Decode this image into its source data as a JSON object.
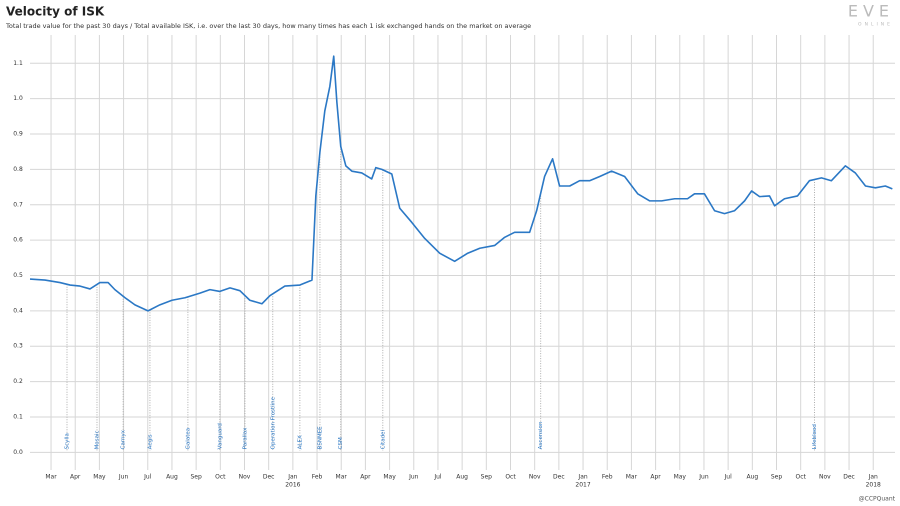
{
  "chart_data": {
    "type": "line",
    "title": "Velocity of ISK",
    "subtitle": "Total trade value for the past 30 days / Total available ISK, i.e. over the last 30 days, how many times has each 1 isk exchanged hands on the market on average",
    "logo": "EVE",
    "logo_sub": "ONLINE",
    "credit": "@CCPQuant",
    "x": [
      0.13,
      0.75,
      1.37,
      1.79,
      2.2,
      2.61,
      3.02,
      3.36,
      3.64,
      4.06,
      4.47,
      5.01,
      5.5,
      6.0,
      6.54,
      7.16,
      7.57,
      7.98,
      8.4,
      8.81,
      9.22,
      9.72,
      10.05,
      10.67,
      11.29,
      11.79,
      11.95,
      12.12,
      12.32,
      12.53,
      12.69,
      12.82,
      12.98,
      13.19,
      13.44,
      13.85,
      14.26,
      14.43,
      14.68,
      15.09,
      15.42,
      15.92,
      16.45,
      17.07,
      17.69,
      18.23,
      18.73,
      19.35,
      19.76,
      20.17,
      20.79,
      21.08,
      21.41,
      21.74,
      22.03,
      22.45,
      22.86,
      23.27,
      23.69,
      24.18,
      24.72,
      25.26,
      25.75,
      26.25,
      26.79,
      27.32,
      27.61,
      28.02,
      28.44,
      28.85,
      29.26,
      29.68,
      29.97,
      30.3,
      30.71,
      30.92,
      31.33,
      31.87,
      32.36,
      32.86,
      33.27,
      33.85,
      34.26,
      34.68,
      35.09,
      35.5,
      35.79
    ],
    "series": [
      {
        "name": "Velocity of ISK",
        "color": "#2b78c5",
        "values": [
          0.49,
          0.487,
          0.48,
          0.473,
          0.47,
          0.462,
          0.48,
          0.48,
          0.46,
          0.437,
          0.417,
          0.4,
          0.417,
          0.43,
          0.437,
          0.45,
          0.46,
          0.455,
          0.465,
          0.457,
          0.43,
          0.42,
          0.443,
          0.47,
          0.473,
          0.487,
          0.725,
          0.85,
          0.965,
          1.035,
          1.12,
          0.99,
          0.865,
          0.81,
          0.795,
          0.79,
          0.773,
          0.805,
          0.8,
          0.787,
          0.69,
          0.65,
          0.605,
          0.563,
          0.54,
          0.563,
          0.577,
          0.585,
          0.608,
          0.622,
          0.622,
          0.683,
          0.78,
          0.83,
          0.753,
          0.753,
          0.768,
          0.768,
          0.78,
          0.795,
          0.78,
          0.731,
          0.711,
          0.711,
          0.717,
          0.717,
          0.731,
          0.731,
          0.683,
          0.675,
          0.683,
          0.711,
          0.739,
          0.723,
          0.725,
          0.697,
          0.717,
          0.725,
          0.768,
          0.776,
          0.768,
          0.81,
          0.79,
          0.753,
          0.748,
          0.753,
          0.745
        ]
      }
    ],
    "xlim": [
      0.13,
      35.9
    ],
    "xticks": [
      {
        "value": 1,
        "label": "Mar"
      },
      {
        "value": 2,
        "label": "Apr"
      },
      {
        "value": 3,
        "label": "May"
      },
      {
        "value": 4,
        "label": "Jun"
      },
      {
        "value": 5,
        "label": "Jul"
      },
      {
        "value": 6,
        "label": "Aug"
      },
      {
        "value": 7,
        "label": "Sep"
      },
      {
        "value": 8,
        "label": "Oct"
      },
      {
        "value": 9,
        "label": "Nov"
      },
      {
        "value": 10,
        "label": "Dec"
      },
      {
        "value": 11,
        "label": "Jan"
      },
      {
        "value": 12,
        "label": "Feb"
      },
      {
        "value": 13,
        "label": "Mar"
      },
      {
        "value": 14,
        "label": "Apr"
      },
      {
        "value": 15,
        "label": "May"
      },
      {
        "value": 16,
        "label": "Jun"
      },
      {
        "value": 17,
        "label": "Jul"
      },
      {
        "value": 18,
        "label": "Aug"
      },
      {
        "value": 19,
        "label": "Sep"
      },
      {
        "value": 20,
        "label": "Oct"
      },
      {
        "value": 21,
        "label": "Nov"
      },
      {
        "value": 22,
        "label": "Dec"
      },
      {
        "value": 23,
        "label": "Jan"
      },
      {
        "value": 24,
        "label": "Feb"
      },
      {
        "value": 25,
        "label": "Mar"
      },
      {
        "value": 26,
        "label": "Apr"
      },
      {
        "value": 27,
        "label": "May"
      },
      {
        "value": 28,
        "label": "Jun"
      },
      {
        "value": 29,
        "label": "Jul"
      },
      {
        "value": 30,
        "label": "Aug"
      },
      {
        "value": 31,
        "label": "Sep"
      },
      {
        "value": 32,
        "label": "Oct"
      },
      {
        "value": 33,
        "label": "Nov"
      },
      {
        "value": 34,
        "label": "Dec"
      },
      {
        "value": 35,
        "label": "Jan"
      }
    ],
    "x_year_labels": [
      {
        "value": 11,
        "label": "2016"
      },
      {
        "value": 23,
        "label": "2017"
      },
      {
        "value": 35,
        "label": "2018"
      }
    ],
    "ylim": [
      -0.05,
      1.18
    ],
    "yticks": [
      {
        "value": 0,
        "label": "0.0"
      },
      0.1,
      0.2,
      0.3,
      0.4,
      0.5,
      0.6,
      0.7,
      0.8,
      0.9,
      {
        "value": 1,
        "label": "1.0"
      },
      1.1
    ],
    "grid": true,
    "annotations": [
      {
        "x": 1.66,
        "label": "Scylla"
      },
      {
        "x": 2.9,
        "label": "Mosaic"
      },
      {
        "x": 3.98,
        "label": "Carnyx"
      },
      {
        "x": 5.09,
        "label": "Aegis"
      },
      {
        "x": 6.66,
        "label": "Galatea"
      },
      {
        "x": 7.98,
        "label": "Vanguard"
      },
      {
        "x": 9.02,
        "label": "Parallax"
      },
      {
        "x": 10.17,
        "label": "Operation Frostline"
      },
      {
        "x": 11.29,
        "label": "ALEX"
      },
      {
        "x": 12.12,
        "label": "BSNMEE"
      },
      {
        "x": 12.98,
        "label": "CSM"
      },
      {
        "x": 14.72,
        "label": "Citadel"
      },
      {
        "x": 21.25,
        "label": "Ascension"
      },
      {
        "x": 32.57,
        "label": "Lifeblood"
      }
    ]
  }
}
